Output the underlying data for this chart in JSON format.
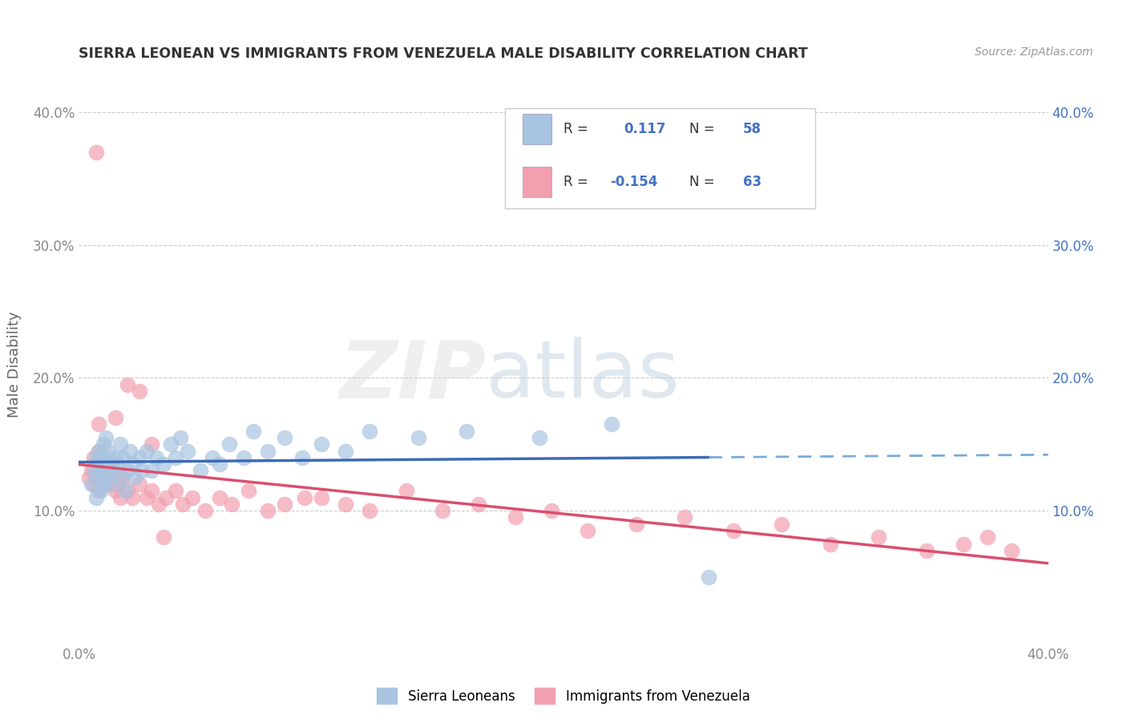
{
  "title": "SIERRA LEONEAN VS IMMIGRANTS FROM VENEZUELA MALE DISABILITY CORRELATION CHART",
  "source": "Source: ZipAtlas.com",
  "ylabel": "Male Disability",
  "x_min": 0.0,
  "x_max": 0.4,
  "y_min": 0.0,
  "y_max": 0.42,
  "x_ticks": [
    0.0,
    0.1,
    0.2,
    0.3,
    0.4
  ],
  "x_tick_labels": [
    "0.0%",
    "",
    "",
    "",
    "40.0%"
  ],
  "y_ticks": [
    0.1,
    0.2,
    0.3,
    0.4
  ],
  "y_tick_labels_left": [
    "10.0%",
    "20.0%",
    "30.0%",
    "40.0%"
  ],
  "y_tick_labels_right": [
    "10.0%",
    "20.0%",
    "30.0%",
    "40.0%"
  ],
  "legend_label1": "Sierra Leoneans",
  "legend_label2": "Immigrants from Venezuela",
  "R1": 0.117,
  "N1": 58,
  "R2": -0.154,
  "N2": 63,
  "color_blue": "#A8C4E0",
  "color_pink": "#F2A0B0",
  "line_blue": "#3B6BB5",
  "line_pink": "#D94F6E",
  "line_blue_dash": "#7AAAD8",
  "background_color": "#FFFFFF",
  "sierra_x": [
    0.005,
    0.006,
    0.007,
    0.007,
    0.008,
    0.008,
    0.008,
    0.009,
    0.009,
    0.009,
    0.01,
    0.01,
    0.01,
    0.011,
    0.011,
    0.011,
    0.012,
    0.012,
    0.013,
    0.013,
    0.014,
    0.015,
    0.016,
    0.017,
    0.017,
    0.018,
    0.019,
    0.02,
    0.021,
    0.022,
    0.023,
    0.025,
    0.026,
    0.028,
    0.03,
    0.032,
    0.035,
    0.038,
    0.04,
    0.042,
    0.045,
    0.05,
    0.055,
    0.058,
    0.062,
    0.068,
    0.072,
    0.078,
    0.085,
    0.092,
    0.1,
    0.11,
    0.12,
    0.14,
    0.16,
    0.19,
    0.22,
    0.26
  ],
  "sierra_y": [
    0.12,
    0.13,
    0.11,
    0.14,
    0.125,
    0.135,
    0.145,
    0.115,
    0.13,
    0.14,
    0.12,
    0.135,
    0.15,
    0.125,
    0.14,
    0.155,
    0.13,
    0.145,
    0.12,
    0.135,
    0.13,
    0.14,
    0.135,
    0.125,
    0.15,
    0.14,
    0.115,
    0.13,
    0.145,
    0.135,
    0.125,
    0.14,
    0.13,
    0.145,
    0.13,
    0.14,
    0.135,
    0.15,
    0.14,
    0.155,
    0.145,
    0.13,
    0.14,
    0.135,
    0.15,
    0.14,
    0.16,
    0.145,
    0.155,
    0.14,
    0.15,
    0.145,
    0.16,
    0.155,
    0.16,
    0.155,
    0.165,
    0.05
  ],
  "venezuela_x": [
    0.004,
    0.005,
    0.006,
    0.006,
    0.007,
    0.007,
    0.008,
    0.008,
    0.009,
    0.009,
    0.01,
    0.01,
    0.011,
    0.012,
    0.013,
    0.014,
    0.015,
    0.016,
    0.017,
    0.018,
    0.02,
    0.022,
    0.025,
    0.028,
    0.03,
    0.033,
    0.036,
    0.04,
    0.043,
    0.047,
    0.052,
    0.058,
    0.063,
    0.07,
    0.078,
    0.085,
    0.093,
    0.1,
    0.11,
    0.12,
    0.135,
    0.15,
    0.165,
    0.18,
    0.195,
    0.21,
    0.23,
    0.25,
    0.27,
    0.29,
    0.31,
    0.33,
    0.35,
    0.365,
    0.375,
    0.385,
    0.015,
    0.02,
    0.025,
    0.03,
    0.035,
    0.008,
    0.007
  ],
  "venezuela_y": [
    0.125,
    0.13,
    0.12,
    0.14,
    0.125,
    0.135,
    0.115,
    0.145,
    0.13,
    0.14,
    0.12,
    0.135,
    0.125,
    0.13,
    0.12,
    0.125,
    0.115,
    0.12,
    0.11,
    0.125,
    0.115,
    0.11,
    0.12,
    0.11,
    0.115,
    0.105,
    0.11,
    0.115,
    0.105,
    0.11,
    0.1,
    0.11,
    0.105,
    0.115,
    0.1,
    0.105,
    0.11,
    0.11,
    0.105,
    0.1,
    0.115,
    0.1,
    0.105,
    0.095,
    0.1,
    0.085,
    0.09,
    0.095,
    0.085,
    0.09,
    0.075,
    0.08,
    0.07,
    0.075,
    0.08,
    0.07,
    0.17,
    0.195,
    0.19,
    0.15,
    0.08,
    0.165,
    0.37
  ]
}
